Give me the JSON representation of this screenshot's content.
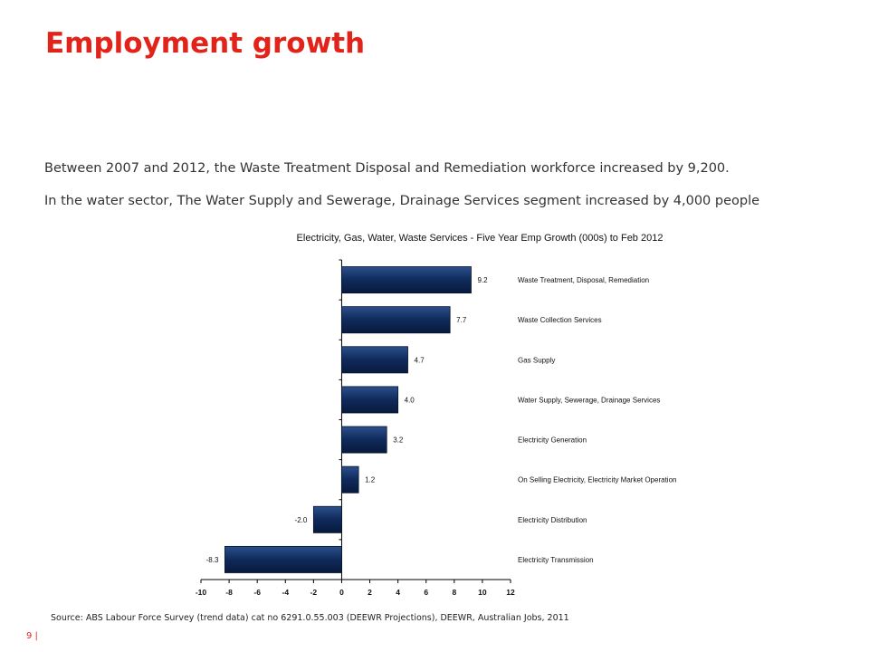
{
  "title": "Employment growth",
  "paragraphs": [
    "Between 2007 and 2012, the Waste Treatment Disposal and Remediation workforce increased by 9,200.",
    "In the water sector, The Water Supply and Sewerage, Drainage Services segment increased by 4,000 people"
  ],
  "source": "Source: ABS Labour Force Survey (trend data) cat no 6291.0.55.003 (DEEWR Projections), DEEWR, Australian Jobs, 2011",
  "page_number": "9 |",
  "colors": {
    "title": "#e2231a",
    "bar": "#0f2a5a",
    "page_number": "#e2231a"
  },
  "chart_data": {
    "type": "bar",
    "orientation": "horizontal",
    "title": "Electricity, Gas, Water, Waste Services - Five Year Emp Growth (000s) to Feb 2012",
    "categories": [
      "Waste Treatment, Disposal, Remediation",
      "Waste Collection Services",
      "Gas Supply",
      "Water Supply, Sewerage, Drainage Services",
      "Electricity Generation",
      "On Selling Electricity, Electricity Market Operation",
      "Electricity Distribution",
      "Electricity Transmission"
    ],
    "values": [
      9.2,
      7.7,
      4.7,
      4.0,
      3.2,
      1.2,
      -2.0,
      -8.3
    ],
    "value_labels": [
      "9.2",
      "7.7",
      "4.7",
      "4.0",
      "3.2",
      "1.2",
      "-2.0",
      "-8.3"
    ],
    "xlim": [
      -10,
      12
    ],
    "x_ticks": [
      "-10",
      "-8",
      "-6",
      "-4",
      "-2",
      "0",
      "2",
      "4",
      "6",
      "8",
      "10",
      "12"
    ],
    "grid": false,
    "legend": "none"
  }
}
